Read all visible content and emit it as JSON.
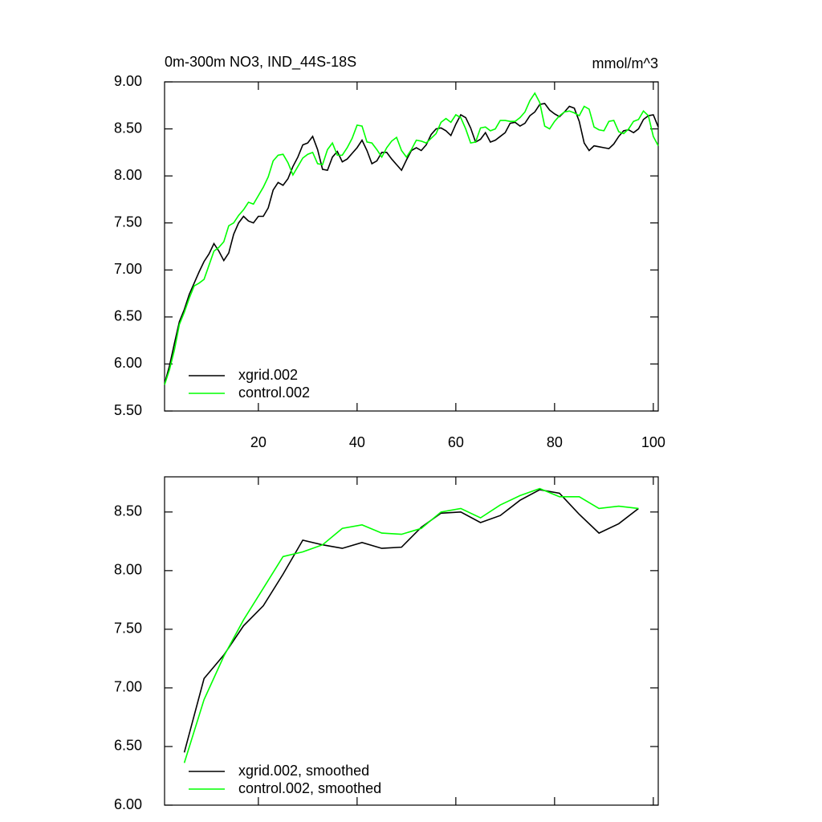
{
  "chart_data": [
    {
      "type": "line",
      "title": "0m-300m NO3, IND_44S-18S",
      "units": "mmol/m^3",
      "x": [
        1,
        2,
        3,
        4,
        5,
        6,
        7,
        8,
        9,
        10,
        11,
        12,
        13,
        14,
        15,
        16,
        17,
        18,
        19,
        20,
        21,
        22,
        23,
        24,
        25,
        26,
        27,
        28,
        29,
        30,
        31,
        32,
        33,
        34,
        35,
        36,
        37,
        38,
        39,
        40,
        41,
        42,
        43,
        44,
        45,
        46,
        47,
        48,
        49,
        50,
        51,
        52,
        53,
        54,
        55,
        56,
        57,
        58,
        59,
        60,
        61,
        62,
        63,
        64,
        65,
        66,
        67,
        68,
        69,
        70,
        71,
        72,
        73,
        74,
        75,
        76,
        77,
        78,
        79,
        80,
        81,
        82,
        83,
        84,
        85,
        86,
        87,
        88,
        89,
        90,
        91,
        92,
        93,
        94,
        95,
        96,
        97,
        98,
        99,
        100,
        101
      ],
      "series": [
        {
          "name": "xgrid.002",
          "color": "#000000",
          "values": [
            5.79,
            5.98,
            6.22,
            6.45,
            6.58,
            6.74,
            6.86,
            6.98,
            7.09,
            7.17,
            7.28,
            7.2,
            7.1,
            7.18,
            7.38,
            7.5,
            7.57,
            7.52,
            7.5,
            7.57,
            7.57,
            7.66,
            7.85,
            7.93,
            7.9,
            7.97,
            8.1,
            8.2,
            8.33,
            8.35,
            8.42,
            8.28,
            8.07,
            8.06,
            8.2,
            8.26,
            8.15,
            8.18,
            8.24,
            8.3,
            8.38,
            8.27,
            8.13,
            8.16,
            8.25,
            8.25,
            8.18,
            8.12,
            8.06,
            8.17,
            8.27,
            8.3,
            8.27,
            8.33,
            8.44,
            8.5,
            8.51,
            8.48,
            8.43,
            8.55,
            8.65,
            8.62,
            8.51,
            8.36,
            8.39,
            8.46,
            8.36,
            8.38,
            8.42,
            8.46,
            8.56,
            8.57,
            8.53,
            8.56,
            8.64,
            8.68,
            8.76,
            8.77,
            8.7,
            8.66,
            8.63,
            8.68,
            8.74,
            8.72,
            8.58,
            8.35,
            8.27,
            8.32,
            8.31,
            8.3,
            8.29,
            8.34,
            8.42,
            8.48,
            8.49,
            8.46,
            8.5,
            8.6,
            8.64,
            8.65,
            8.52
          ]
        },
        {
          "name": "control.002",
          "color": "#00ff00",
          "values": [
            5.78,
            5.94,
            6.15,
            6.42,
            6.55,
            6.7,
            6.83,
            6.86,
            6.9,
            7.05,
            7.2,
            7.24,
            7.3,
            7.47,
            7.5,
            7.58,
            7.64,
            7.72,
            7.7,
            7.79,
            7.88,
            7.99,
            8.16,
            8.22,
            8.23,
            8.14,
            8.01,
            8.1,
            8.19,
            8.23,
            8.25,
            8.13,
            8.12,
            8.28,
            8.35,
            8.22,
            8.22,
            8.3,
            8.4,
            8.54,
            8.53,
            8.36,
            8.35,
            8.28,
            8.2,
            8.3,
            8.37,
            8.41,
            8.27,
            8.2,
            8.28,
            8.38,
            8.37,
            8.35,
            8.4,
            8.45,
            8.57,
            8.61,
            8.57,
            8.65,
            8.62,
            8.5,
            8.35,
            8.36,
            8.51,
            8.52,
            8.48,
            8.5,
            8.59,
            8.59,
            8.58,
            8.58,
            8.62,
            8.68,
            8.8,
            8.88,
            8.78,
            8.53,
            8.5,
            8.58,
            8.64,
            8.68,
            8.69,
            8.67,
            8.64,
            8.74,
            8.71,
            8.52,
            8.49,
            8.48,
            8.58,
            8.59,
            8.47,
            8.45,
            8.5,
            8.58,
            8.6,
            8.69,
            8.64,
            8.42,
            8.32
          ]
        }
      ],
      "xlim": [
        1,
        101
      ],
      "xticks": [
        20,
        40,
        60,
        80,
        100
      ],
      "ylim": [
        5.5,
        9.0
      ],
      "yticks": [
        {
          "value": 5.5,
          "label": "5.50"
        },
        {
          "value": 6,
          "label": "6.00"
        },
        {
          "value": 6.5,
          "label": "6.50"
        },
        {
          "value": 7,
          "label": "7.00"
        },
        {
          "value": 7.5,
          "label": "7.50"
        },
        {
          "value": 8,
          "label": "8.00"
        },
        {
          "value": 8.5,
          "label": "8.50"
        },
        {
          "value": 9,
          "label": "9.00"
        }
      ],
      "legend": "lower left"
    },
    {
      "type": "line",
      "x": [
        5,
        9,
        13,
        17,
        21,
        25,
        29,
        33,
        37,
        41,
        45,
        49,
        53,
        57,
        61,
        65,
        69,
        73,
        77,
        81,
        85,
        89,
        93,
        97
      ],
      "series": [
        {
          "name": "xgrid.002, smoothed",
          "color": "#000000",
          "values": [
            6.45,
            7.08,
            7.28,
            7.53,
            7.7,
            7.97,
            8.26,
            8.22,
            8.19,
            8.24,
            8.19,
            8.2,
            8.37,
            8.49,
            8.5,
            8.41,
            8.47,
            8.6,
            8.69,
            8.66,
            8.48,
            8.32,
            8.4,
            8.53
          ]
        },
        {
          "name": "control.002, smoothed",
          "color": "#00ff00",
          "values": [
            6.36,
            6.9,
            7.27,
            7.58,
            7.85,
            8.12,
            8.16,
            8.22,
            8.36,
            8.39,
            8.32,
            8.31,
            8.36,
            8.5,
            8.53,
            8.45,
            8.56,
            8.64,
            8.7,
            8.63,
            8.63,
            8.53,
            8.55,
            8.53
          ]
        }
      ],
      "xlim": [
        1,
        101
      ],
      "xticks": [
        20,
        40,
        60,
        80,
        100
      ],
      "ylim": [
        6.0,
        8.8
      ],
      "yticks": [
        {
          "value": 6,
          "label": "6.00"
        },
        {
          "value": 6.5,
          "label": "6.50"
        },
        {
          "value": 7,
          "label": "7.00"
        },
        {
          "value": 7.5,
          "label": "7.50"
        },
        {
          "value": 8,
          "label": "8.00"
        },
        {
          "value": 8.5,
          "label": "8.50"
        }
      ],
      "legend": "lower left"
    }
  ]
}
